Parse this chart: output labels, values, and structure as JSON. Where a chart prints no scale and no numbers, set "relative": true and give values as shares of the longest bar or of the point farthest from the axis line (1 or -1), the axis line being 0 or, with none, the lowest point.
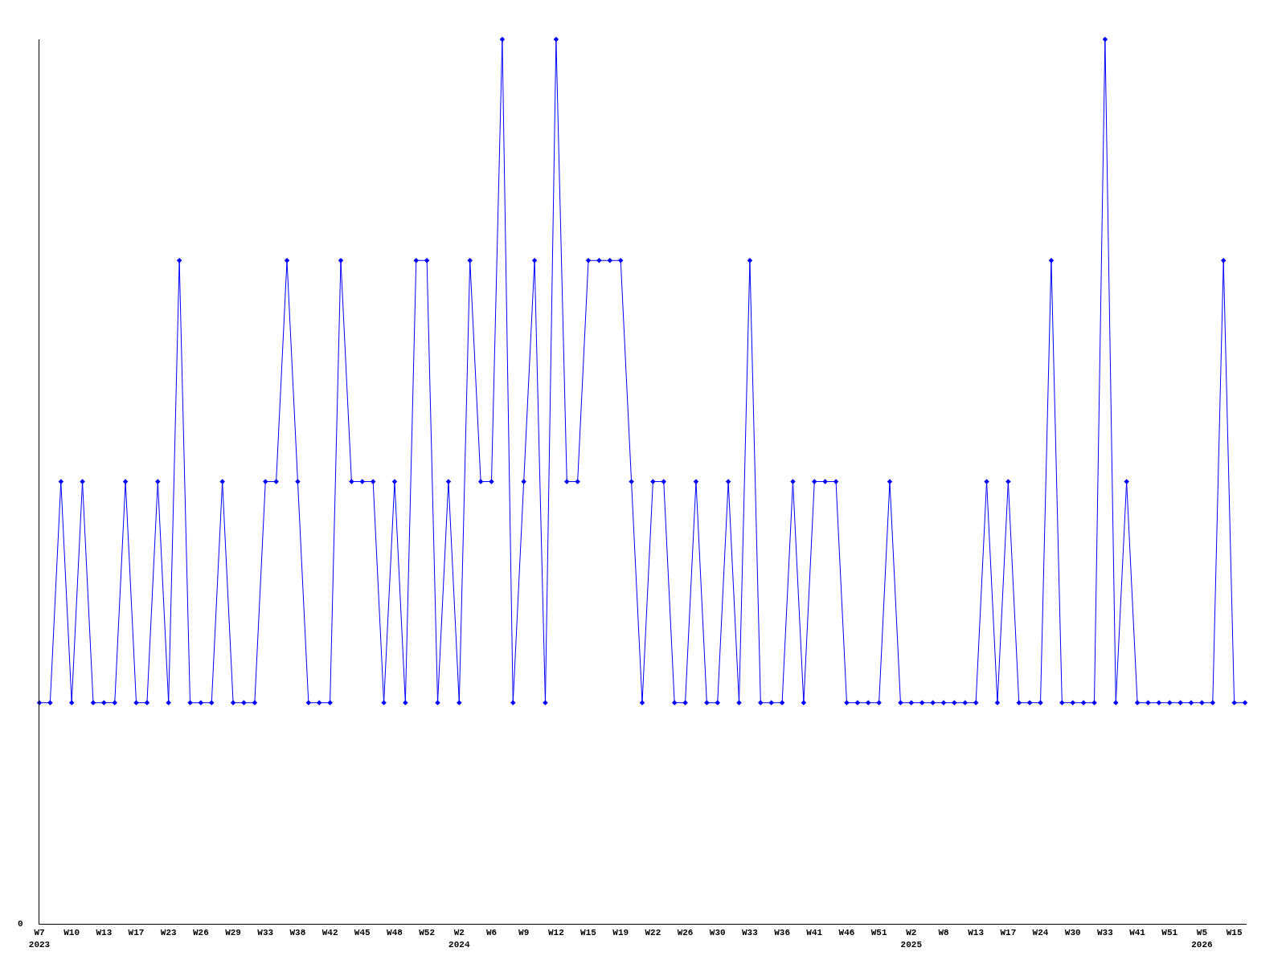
{
  "chart_data": {
    "type": "line",
    "relative": true,
    "categories": [
      "W7\n2023",
      null,
      null,
      "W10",
      null,
      null,
      "W13",
      null,
      null,
      "W17",
      null,
      null,
      "W23",
      null,
      null,
      "W26",
      null,
      null,
      "W29",
      null,
      null,
      "W33",
      null,
      null,
      "W38",
      null,
      null,
      "W42",
      null,
      null,
      "W45",
      null,
      null,
      "W48",
      null,
      null,
      "W52",
      null,
      null,
      "W2\n2024",
      null,
      null,
      "W6",
      null,
      null,
      "W9",
      null,
      null,
      "W12",
      null,
      null,
      "W15",
      null,
      null,
      "W19",
      null,
      null,
      "W22",
      null,
      null,
      "W26",
      null,
      null,
      "W30",
      null,
      null,
      "W33",
      null,
      null,
      "W36",
      null,
      null,
      "W41",
      null,
      null,
      "W46",
      null,
      null,
      "W51",
      null,
      null,
      "W2\n2025",
      null,
      null,
      "W8",
      null,
      null,
      "W13",
      null,
      null,
      "W17",
      null,
      null,
      "W24",
      null,
      null,
      "W30",
      null,
      null,
      "W33",
      null,
      null,
      "W41",
      null,
      null,
      "W51",
      null,
      null,
      "W5\n2026",
      null,
      null,
      "W15",
      null
    ],
    "series": [
      {
        "color": "#0000ff",
        "values": [
          0.25,
          0.25,
          0.5,
          0.25,
          0.5,
          0.25,
          0.25,
          0.25,
          0.5,
          0.25,
          0.25,
          0.5,
          0.25,
          0.75,
          0.25,
          0.25,
          0.25,
          0.5,
          0.25,
          0.25,
          0.25,
          0.5,
          0.5,
          0.75,
          0.5,
          0.25,
          0.25,
          0.25,
          0.75,
          0.5,
          0.5,
          0.5,
          0.25,
          0.5,
          0.25,
          0.75,
          0.75,
          0.25,
          0.5,
          0.25,
          0.75,
          0.5,
          0.5,
          1,
          0.25,
          0.5,
          0.75,
          0.25,
          1,
          0.5,
          0.5,
          0.75,
          0.75,
          0.75,
          0.75,
          0.5,
          0.25,
          0.5,
          0.5,
          0.25,
          0.25,
          0.5,
          0.25,
          0.25,
          0.5,
          0.25,
          0.75,
          0.25,
          0.25,
          0.25,
          0.5,
          0.25,
          0.5,
          0.5,
          0.5,
          0.25,
          0.25,
          0.25,
          0.25,
          0.5,
          0.25,
          0.25,
          0.25,
          0.25,
          0.25,
          0.25,
          0.25,
          0.25,
          0.5,
          0.25,
          0.5,
          0.25,
          0.25,
          0.25,
          0.75,
          0.25,
          0.25,
          0.25,
          0.25,
          1,
          0.25,
          0.5,
          0.25,
          0.25,
          0.25,
          0.25,
          0.25,
          0.25,
          0.25,
          0.25,
          0.75,
          0.25,
          0.25
        ]
      }
    ],
    "marker": "diamond",
    "line_style": "solid",
    "annotations": [
      "0"
    ]
  }
}
